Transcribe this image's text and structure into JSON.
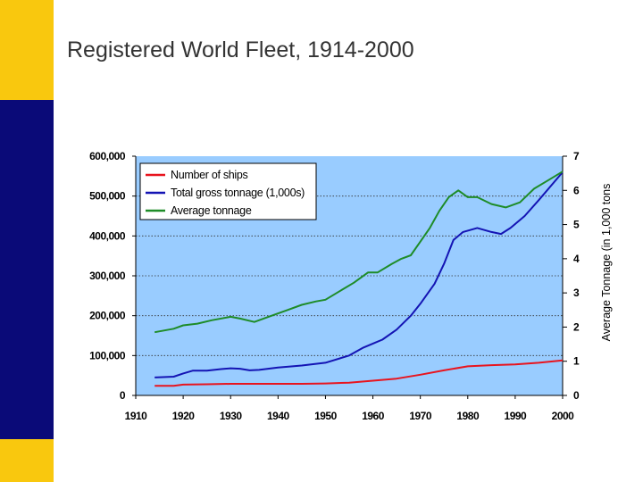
{
  "slide": {
    "title": "Registered World Fleet, 1914-2000",
    "colors": {
      "gold": "#f9c80e",
      "navy": "#0a0a78",
      "plot_bg": "#99ccff"
    }
  },
  "chart_data": {
    "type": "line",
    "title": "Registered World Fleet, 1914-2000",
    "xlabel": "",
    "ylabel": "",
    "y2label": "Average Tonnage (in 1,000 tons",
    "xlim": [
      1910,
      2000
    ],
    "ylim": [
      0,
      600000
    ],
    "y2lim": [
      0,
      7
    ],
    "x_ticks": [
      "1910",
      "1920",
      "1930",
      "1940",
      "1950",
      "1960",
      "1970",
      "1980",
      "1990",
      "2000"
    ],
    "y_ticks": [
      "0",
      "100,000",
      "200,000",
      "300,000",
      "400,000",
      "500,000",
      "600,000"
    ],
    "y2_ticks": [
      "0",
      "1",
      "2",
      "3",
      "4",
      "5",
      "6",
      "7"
    ],
    "legend": [
      "Number of ships",
      "Total gross tonnage (1,000s)",
      "Average tonnage"
    ],
    "legend_position": "top-left",
    "series": [
      {
        "name": "Number of ships",
        "axis": "left",
        "color": "#e8141e",
        "x": [
          1914,
          1918,
          1920,
          1925,
          1930,
          1935,
          1940,
          1945,
          1950,
          1955,
          1960,
          1965,
          1970,
          1975,
          1980,
          1985,
          1990,
          1995,
          2000
        ],
        "values": [
          24000,
          24000,
          27000,
          28000,
          29000,
          29000,
          29000,
          29000,
          30000,
          32000,
          37000,
          42000,
          52000,
          63000,
          73000,
          76000,
          78000,
          82000,
          88000
        ]
      },
      {
        "name": "Total gross tonnage (1,000s)",
        "axis": "left",
        "color": "#1414b4",
        "x": [
          1914,
          1918,
          1920,
          1922,
          1925,
          1928,
          1930,
          1932,
          1934,
          1936,
          1940,
          1945,
          1950,
          1955,
          1958,
          1960,
          1962,
          1965,
          1968,
          1970,
          1973,
          1975,
          1977,
          1979,
          1982,
          1985,
          1987,
          1989,
          1992,
          1995,
          2000
        ],
        "values": [
          45000,
          47000,
          55000,
          62000,
          62000,
          66000,
          68000,
          67000,
          63000,
          64000,
          70000,
          75000,
          82000,
          100000,
          120000,
          130000,
          140000,
          165000,
          200000,
          230000,
          280000,
          330000,
          390000,
          410000,
          420000,
          410000,
          405000,
          420000,
          450000,
          490000,
          560000
        ]
      },
      {
        "name": "Average tonnage",
        "axis": "right",
        "color": "#1e8c28",
        "x": [
          1914,
          1918,
          1920,
          1923,
          1926,
          1930,
          1932,
          1935,
          1938,
          1942,
          1945,
          1948,
          1950,
          1953,
          1956,
          1959,
          1961,
          1964,
          1966,
          1968,
          1970,
          1972,
          1974,
          1976,
          1978,
          1980,
          1982,
          1985,
          1988,
          1991,
          1994,
          1997,
          2000
        ],
        "values": [
          1.85,
          1.95,
          2.05,
          2.1,
          2.2,
          2.3,
          2.25,
          2.15,
          2.3,
          2.5,
          2.65,
          2.75,
          2.8,
          3.05,
          3.3,
          3.6,
          3.6,
          3.85,
          4.0,
          4.1,
          4.5,
          4.9,
          5.4,
          5.8,
          6.0,
          5.8,
          5.8,
          5.6,
          5.5,
          5.65,
          6.05,
          6.3,
          6.55
        ]
      }
    ]
  }
}
